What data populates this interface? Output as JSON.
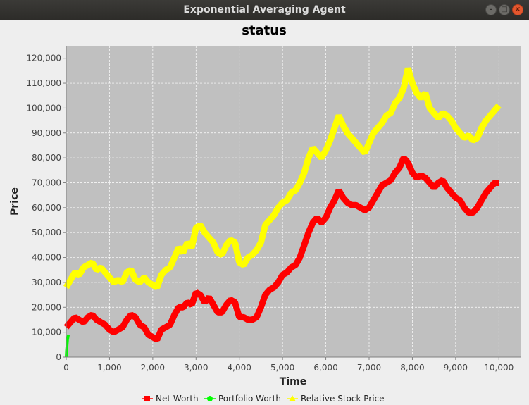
{
  "window": {
    "title": "Exponential Averaging Agent"
  },
  "chart_data": {
    "type": "line",
    "title": "status",
    "xlabel": "Time",
    "ylabel": "Price",
    "xlim": [
      0,
      10500
    ],
    "ylim": [
      0,
      125000
    ],
    "xticks": [
      0,
      1000,
      2000,
      3000,
      4000,
      5000,
      6000,
      7000,
      8000,
      9000,
      10000
    ],
    "xtick_labels": [
      "0",
      "1,000",
      "2,000",
      "3,000",
      "4,000",
      "5,000",
      "6,000",
      "7,000",
      "8,000",
      "9,000",
      "10,000"
    ],
    "yticks": [
      0,
      10000,
      20000,
      30000,
      40000,
      50000,
      60000,
      70000,
      80000,
      90000,
      100000,
      110000,
      120000
    ],
    "ytick_labels": [
      "0",
      "10,000",
      "20,000",
      "30,000",
      "40,000",
      "50,000",
      "60,000",
      "70,000",
      "80,000",
      "90,000",
      "100,000",
      "110,000",
      "120,000"
    ],
    "grid": true,
    "background": "#c0c0c0",
    "legend_position": "bottom",
    "series": [
      {
        "name": "Relative Stock Price",
        "color": "#ffff00",
        "x": [
          0,
          100,
          200,
          300,
          400,
          500,
          600,
          700,
          800,
          900,
          1000,
          1100,
          1200,
          1300,
          1400,
          1500,
          1600,
          1700,
          1800,
          1900,
          2000,
          2100,
          2200,
          2300,
          2400,
          2500,
          2600,
          2700,
          2800,
          2900,
          3000,
          3100,
          3200,
          3300,
          3400,
          3500,
          3600,
          3700,
          3800,
          3900,
          4000,
          4100,
          4200,
          4300,
          4400,
          4500,
          4600,
          4700,
          4800,
          4900,
          5000,
          5100,
          5200,
          5300,
          5400,
          5500,
          5600,
          5700,
          5800,
          5900,
          6000,
          6100,
          6200,
          6300,
          6400,
          6500,
          6600,
          6700,
          6800,
          6900,
          7000,
          7100,
          7200,
          7300,
          7400,
          7500,
          7600,
          7700,
          7800,
          7900,
          8000,
          8100,
          8200,
          8300,
          8400,
          8500,
          8600,
          8700,
          8800,
          8900,
          9000,
          9100,
          9200,
          9300,
          9400,
          9500,
          9600,
          9700,
          9800,
          9900,
          10000
        ],
        "values": [
          28000,
          31000,
          34000,
          33000,
          36000,
          37000,
          38000,
          35000,
          36000,
          34000,
          32000,
          30000,
          31000,
          30000,
          34000,
          35000,
          31000,
          30000,
          32000,
          30000,
          29000,
          28000,
          33000,
          35000,
          36000,
          40000,
          44000,
          42000,
          46000,
          44000,
          52000,
          53000,
          50000,
          48000,
          46000,
          42000,
          41000,
          45000,
          47000,
          46000,
          38000,
          37000,
          40000,
          41000,
          43000,
          46000,
          53000,
          55000,
          57000,
          60000,
          62000,
          63000,
          66000,
          67000,
          70000,
          74000,
          80000,
          84000,
          82000,
          80000,
          83000,
          87000,
          92000,
          97000,
          93000,
          90000,
          88000,
          86000,
          84000,
          82000,
          86000,
          90000,
          92000,
          94000,
          97000,
          98000,
          102000,
          104000,
          108000,
          116000,
          110000,
          106000,
          104000,
          106000,
          100000,
          98000,
          96000,
          98000,
          97000,
          95000,
          92000,
          90000,
          88000,
          89000,
          87000,
          88000,
          92000,
          95000,
          97000,
          99000,
          101000
        ]
      },
      {
        "name": "Net Worth",
        "color": "#ff0000",
        "x": [
          0,
          100,
          200,
          300,
          400,
          500,
          600,
          700,
          800,
          900,
          1000,
          1100,
          1200,
          1300,
          1400,
          1500,
          1600,
          1700,
          1800,
          1900,
          2000,
          2100,
          2200,
          2300,
          2400,
          2500,
          2600,
          2700,
          2800,
          2900,
          3000,
          3100,
          3200,
          3300,
          3400,
          3500,
          3600,
          3700,
          3800,
          3900,
          4000,
          4100,
          4200,
          4300,
          4400,
          4500,
          4600,
          4700,
          4800,
          4900,
          5000,
          5100,
          5200,
          5300,
          5400,
          5500,
          5600,
          5700,
          5800,
          5900,
          6000,
          6100,
          6200,
          6300,
          6400,
          6500,
          6600,
          6700,
          6800,
          6900,
          7000,
          7100,
          7200,
          7300,
          7400,
          7500,
          7600,
          7700,
          7800,
          7900,
          8000,
          8100,
          8200,
          8300,
          8400,
          8500,
          8600,
          8700,
          8800,
          8900,
          9000,
          9100,
          9200,
          9300,
          9400,
          9500,
          9600,
          9700,
          9800,
          9900,
          10000
        ],
        "values": [
          12000,
          14000,
          16000,
          15000,
          14000,
          16000,
          17000,
          15000,
          14000,
          13000,
          11000,
          10000,
          11000,
          12000,
          15000,
          17000,
          16000,
          13000,
          12000,
          9000,
          8000,
          7000,
          11000,
          12000,
          13000,
          17000,
          20000,
          20000,
          22000,
          21000,
          26000,
          25000,
          22000,
          24000,
          21000,
          18000,
          18000,
          21000,
          23000,
          22000,
          16000,
          16000,
          15000,
          15000,
          16000,
          20000,
          25000,
          27000,
          28000,
          30000,
          33000,
          34000,
          36000,
          37000,
          40000,
          45000,
          50000,
          54000,
          56000,
          54000,
          56000,
          60000,
          63000,
          67000,
          64000,
          62000,
          61000,
          61000,
          60000,
          59000,
          60000,
          63000,
          66000,
          69000,
          70000,
          71000,
          74000,
          76000,
          80000,
          78000,
          74000,
          72000,
          73000,
          72000,
          70000,
          68000,
          70000,
          71000,
          68000,
          66000,
          64000,
          63000,
          60000,
          58000,
          58000,
          60000,
          63000,
          66000,
          68000,
          70000,
          70000
        ]
      },
      {
        "name": "Portfolio Worth",
        "color": "#00ff00",
        "x": [
          0,
          10,
          20,
          30,
          40,
          50
        ],
        "values": [
          0,
          3000,
          5000,
          7000,
          8000,
          9000
        ]
      }
    ],
    "legend": [
      {
        "name": "Net Worth",
        "color": "#ff0000",
        "marker": "square"
      },
      {
        "name": "Portfolio Worth",
        "color": "#00ff00",
        "marker": "circle"
      },
      {
        "name": "Relative Stock Price",
        "color": "#ffff00",
        "marker": "triangle"
      }
    ]
  }
}
